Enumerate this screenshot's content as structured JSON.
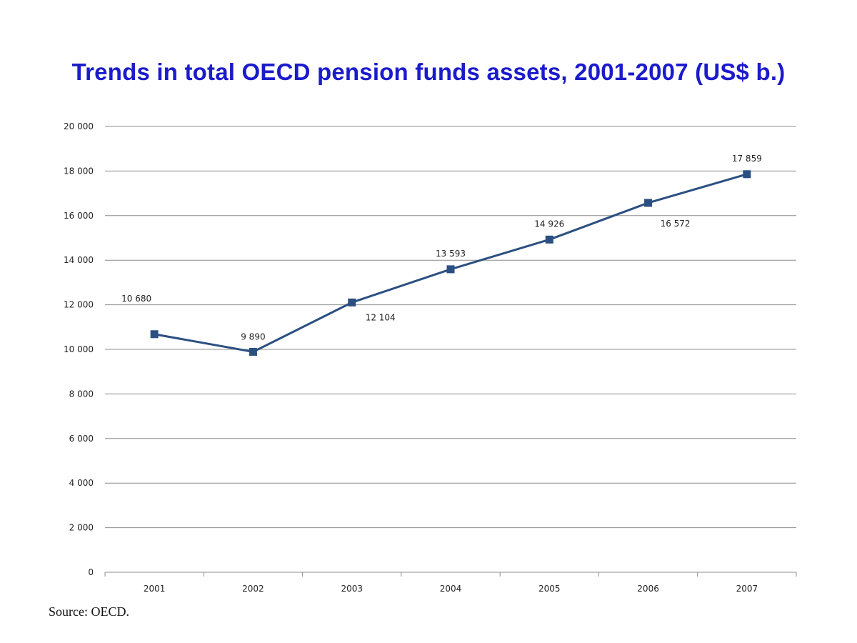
{
  "chart_data": {
    "type": "line",
    "title": "Trends in total OECD pension funds assets, 2001-2007 (US$ b.)",
    "categories": [
      "2001",
      "2002",
      "2003",
      "2004",
      "2005",
      "2006",
      "2007"
    ],
    "series": [
      {
        "name": "Total OECD pension funds assets",
        "values": [
          10680,
          9890,
          12104,
          13593,
          14926,
          16572,
          17859
        ],
        "labels": [
          "10 680",
          "9 890",
          "12 104",
          "13 593",
          "14 926",
          "16 572",
          "17 859"
        ],
        "color": "#2b4f81"
      }
    ],
    "ylim": [
      0,
      20000
    ],
    "yticks": [
      0,
      2000,
      4000,
      6000,
      8000,
      10000,
      12000,
      14000,
      16000,
      18000,
      20000
    ],
    "ytick_labels": [
      "0",
      "2 000",
      "4 000",
      "6 000",
      "8 000",
      "10 000",
      "12 000",
      "14 000",
      "16 000",
      "18 000",
      "20 000"
    ],
    "xlabel": "",
    "ylabel": "",
    "grid": true,
    "legend": "none"
  },
  "source": "Source: OECD."
}
